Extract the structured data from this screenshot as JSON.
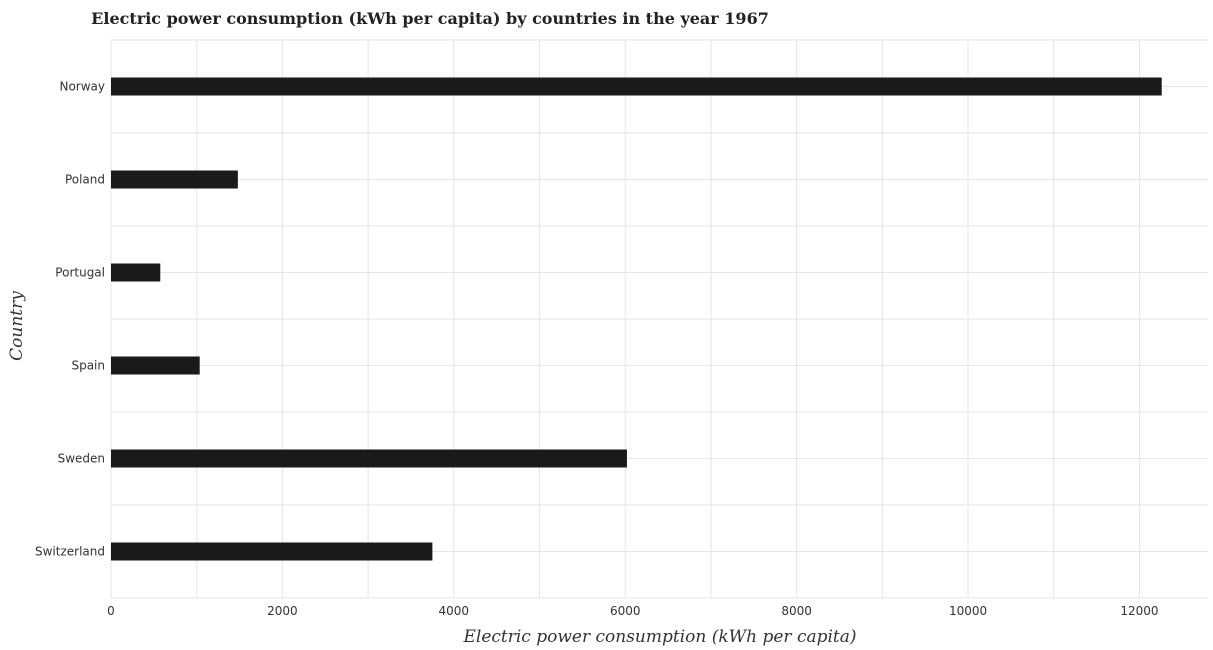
{
  "chart_data": {
    "type": "bar",
    "orientation": "horizontal",
    "title": "Electric power consumption (kWh per capita) by countries in the year 1967",
    "xlabel": "Electric power consumption (kWh per capita)",
    "ylabel": "Country",
    "categories": [
      "Norway",
      "Poland",
      "Portugal",
      "Spain",
      "Sweden",
      "Switzerland"
    ],
    "values": [
      12260,
      1480,
      575,
      1035,
      6020,
      3750
    ],
    "xlim": [
      0,
      12800
    ],
    "xticks": [
      {
        "value": 0,
        "label": "0"
      },
      {
        "value": 2000,
        "label": "2000"
      },
      {
        "value": 4000,
        "label": "4000"
      },
      {
        "value": 6000,
        "label": "6000"
      },
      {
        "value": 8000,
        "label": "8000"
      },
      {
        "value": 10000,
        "label": "10000"
      },
      {
        "value": 12000,
        "label": "12000"
      }
    ],
    "grid": true,
    "bar_color": "#1a1a1a"
  }
}
